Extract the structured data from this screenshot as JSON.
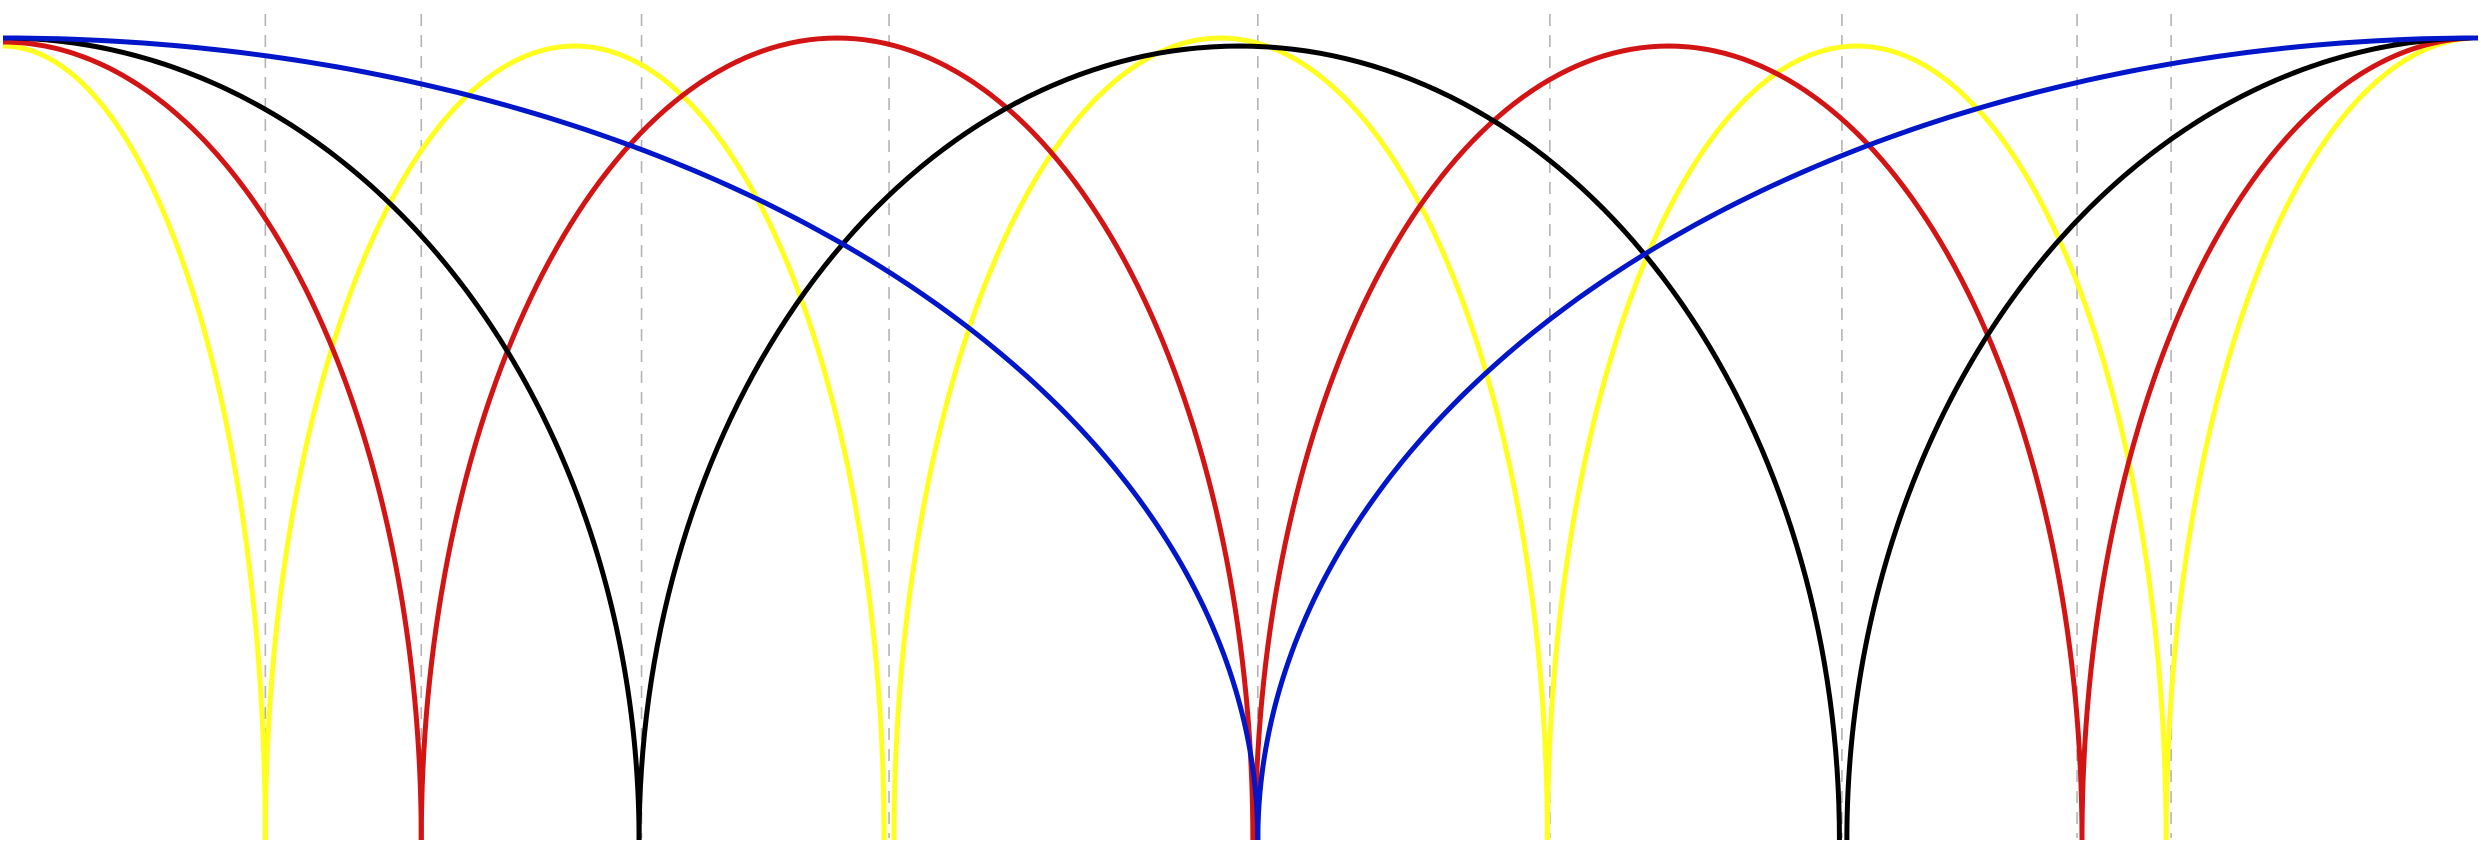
{
  "chart_data": {
    "type": "line",
    "title": "",
    "xlabel": "",
    "ylabel": "",
    "grid": false,
    "legend": "none",
    "xlim": [
      0,
      1
    ],
    "ylim": [
      0,
      1
    ],
    "colors": {
      "background": "#ffffff",
      "guides": "#b3b3b3",
      "yellow": "#ffff1f",
      "red": "#d31414",
      "black": "#000000",
      "blue": "#0016c8"
    },
    "dashed_guides": [
      0.106,
      0.169,
      0.258,
      0.358,
      0.507,
      0.625,
      0.743,
      0.838,
      0.876
    ],
    "series": [
      {
        "color_key": "yellow",
        "arches": [
          {
            "x0": 0.0,
            "x1": 0.106,
            "peak": 0.99,
            "half_arch": "descending"
          },
          {
            "x0": 0.106,
            "x1": 0.356,
            "peak": 0.99
          },
          {
            "x0": 0.36,
            "x1": 0.624,
            "peak": 1.0
          },
          {
            "x0": 0.624,
            "x1": 0.874,
            "peak": 0.99
          },
          {
            "x0": 0.874,
            "x1": 1.0,
            "peak": 1.0,
            "half_arch": "ascending"
          }
        ]
      },
      {
        "color_key": "red",
        "arches": [
          {
            "x0": 0.0,
            "x1": 0.169,
            "peak": 0.995,
            "half_arch": "descending"
          },
          {
            "x0": 0.169,
            "x1": 0.505,
            "peak": 1.0
          },
          {
            "x0": 0.506,
            "x1": 0.84,
            "peak": 0.99
          },
          {
            "x0": 0.84,
            "x1": 1.0,
            "peak": 1.0,
            "half_arch": "ascending"
          }
        ]
      },
      {
        "color_key": "black",
        "arches": [
          {
            "x0": 0.0,
            "x1": 0.257,
            "peak": 1.0,
            "half_arch": "descending"
          },
          {
            "x0": 0.257,
            "x1": 0.742,
            "peak": 0.99
          },
          {
            "x0": 0.745,
            "x1": 1.0,
            "peak": 1.0,
            "half_arch": "ascending"
          }
        ]
      },
      {
        "color_key": "blue",
        "arches": [
          {
            "x0": 0.0,
            "x1": 0.507,
            "peak": 1.0,
            "half_arch": "descending"
          },
          {
            "x0": 0.507,
            "x1": 1.0,
            "peak": 1.0,
            "half_arch": "ascending"
          }
        ]
      }
    ]
  }
}
